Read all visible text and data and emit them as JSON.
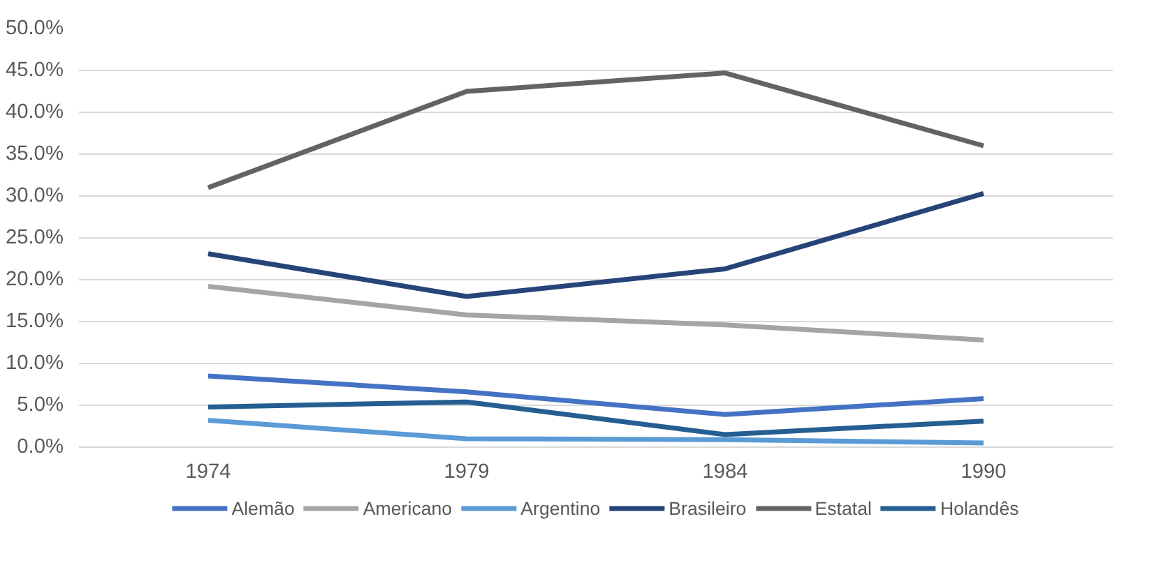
{
  "chart_data": {
    "type": "line",
    "categories": [
      "1974",
      "1979",
      "1984",
      "1990"
    ],
    "series": [
      {
        "name": "Alemão",
        "color": "#4472c4",
        "values": [
          8.5,
          6.6,
          3.9,
          5.8
        ]
      },
      {
        "name": "Americano",
        "color": "#a5a5a5",
        "values": [
          19.2,
          15.8,
          14.6,
          12.8
        ]
      },
      {
        "name": "Argentino",
        "color": "#5b9bd5",
        "values": [
          3.2,
          1.0,
          0.9,
          0.5
        ]
      },
      {
        "name": "Brasileiro",
        "color": "#264478",
        "values": [
          23.1,
          18.0,
          21.3,
          30.3
        ]
      },
      {
        "name": "Estatal",
        "color": "#636363",
        "values": [
          31.0,
          42.5,
          44.7,
          36.0
        ]
      },
      {
        "name": "Holandês",
        "color": "#255e91",
        "values": [
          4.8,
          5.4,
          1.5,
          3.1
        ]
      }
    ],
    "ylim": [
      0,
      50
    ],
    "yticks": [
      {
        "value": 0,
        "label": "0.0%"
      },
      {
        "value": 5,
        "label": "5.0%"
      },
      {
        "value": 10,
        "label": "10.0%"
      },
      {
        "value": 15,
        "label": "15.0%"
      },
      {
        "value": 20,
        "label": "20.0%"
      },
      {
        "value": 25,
        "label": "25.0%"
      },
      {
        "value": 30,
        "label": "30.0%"
      },
      {
        "value": 35,
        "label": "35.0%"
      },
      {
        "value": 40,
        "label": "40.0%"
      },
      {
        "value": 45,
        "label": "45.0%"
      },
      {
        "value": 50,
        "label": "50.0%"
      }
    ],
    "grid": "y",
    "legend": "bottom",
    "marker": "none",
    "line_style": "solid"
  }
}
